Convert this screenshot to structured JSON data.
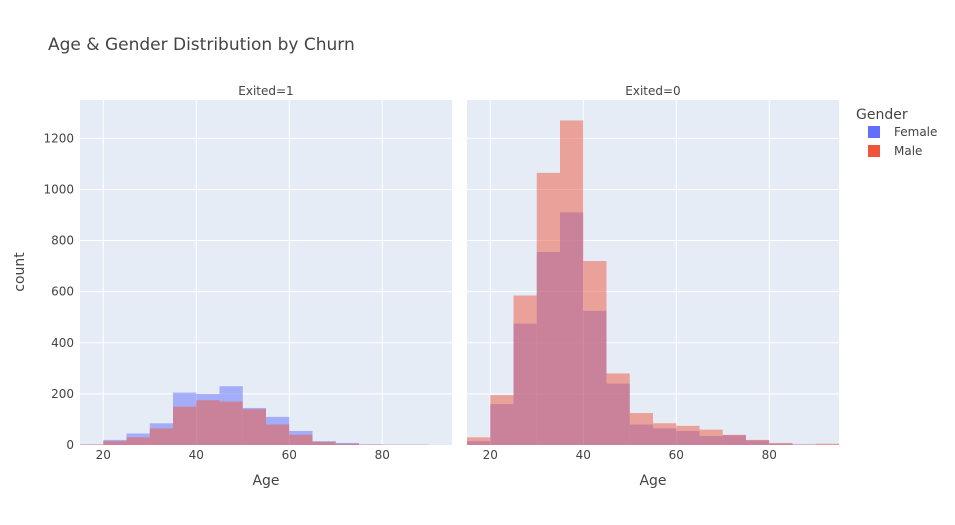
{
  "chart_data": {
    "type": "bar",
    "title": "Age & Gender Distribution by Churn",
    "ylabel": "count",
    "ylim": [
      0,
      1350
    ],
    "yticks": [
      0,
      200,
      400,
      600,
      800,
      1000,
      1200
    ],
    "xticks": [
      20,
      40,
      60,
      80
    ],
    "bin_width": 5,
    "barmode": "overlay",
    "grid": true,
    "legend": {
      "title": "Gender",
      "placement": "right",
      "items": [
        {
          "name": "Female",
          "color": "#636efa"
        },
        {
          "name": "Male",
          "color": "#ef553b"
        }
      ]
    },
    "panels": [
      {
        "facet_label": "Exited=1",
        "xlabel": "Age",
        "xlim": [
          15,
          95
        ],
        "series": [
          {
            "name": "Female",
            "color": "#636efa",
            "bin_starts": [
              15,
              20,
              25,
              30,
              35,
              40,
              45,
              50,
              55,
              60,
              65,
              70,
              75,
              80,
              85
            ],
            "values": [
              2,
              20,
              45,
              85,
              205,
              200,
              230,
              145,
              110,
              55,
              15,
              8,
              2,
              1,
              1
            ]
          },
          {
            "name": "Male",
            "color": "#ef553b",
            "bin_starts": [
              15,
              20,
              25,
              30,
              35,
              40,
              45,
              50,
              55,
              60,
              65,
              70,
              75,
              80,
              85
            ],
            "values": [
              2,
              15,
              30,
              65,
              150,
              175,
              170,
              140,
              80,
              40,
              12,
              5,
              2,
              1,
              1
            ]
          }
        ]
      },
      {
        "facet_label": "Exited=0",
        "xlabel": "Age",
        "xlim": [
          15,
          95
        ],
        "series": [
          {
            "name": "Female",
            "color": "#636efa",
            "bin_starts": [
              15,
              20,
              25,
              30,
              35,
              40,
              45,
              50,
              55,
              60,
              65,
              70,
              75,
              80,
              85,
              90
            ],
            "values": [
              15,
              160,
              475,
              755,
              910,
              525,
              240,
              80,
              65,
              55,
              35,
              38,
              18,
              5,
              2,
              1
            ]
          },
          {
            "name": "Male",
            "color": "#ef553b",
            "bin_starts": [
              15,
              20,
              25,
              30,
              35,
              40,
              45,
              50,
              55,
              60,
              65,
              70,
              75,
              80,
              85,
              90
            ],
            "values": [
              30,
              195,
              585,
              1065,
              1270,
              720,
              280,
              125,
              85,
              75,
              60,
              40,
              20,
              8,
              2,
              5
            ]
          }
        ]
      }
    ]
  }
}
